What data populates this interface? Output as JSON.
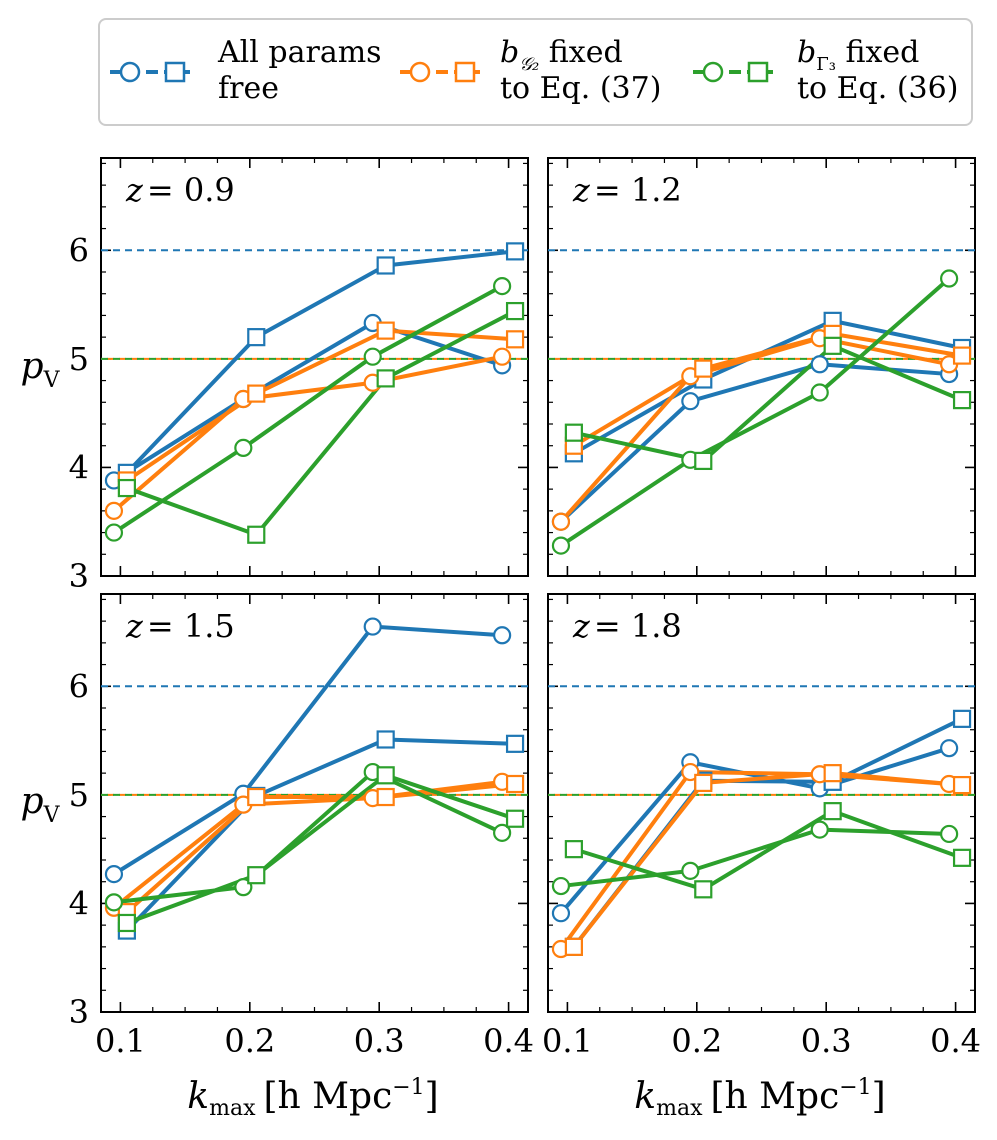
{
  "colors": {
    "free": "#1f77b4",
    "g2": "#ff7f0e",
    "g3": "#2ca02c",
    "axis": "#000000",
    "legend_border": "#cccccc"
  },
  "legend": [
    {
      "key": "free",
      "line1": "All params",
      "line2": "free"
    },
    {
      "key": "g2",
      "sym_main": "b",
      "sym_sub": "𝒢₂",
      "line1_rest": " fixed",
      "line2": "to Eq. (37)"
    },
    {
      "key": "g3",
      "sym_main": "b",
      "sym_sub": "Γ₃",
      "line1_rest": " fixed",
      "line2": "to Eq. (36)"
    }
  ],
  "axes": {
    "ylabel_main": "p",
    "ylabel_sub": "V",
    "xlabel_main": "k",
    "xlabel_sub": "max",
    "xlabel_units": "[h Mpc",
    "xlabel_sup": "−1",
    "xlabel_close": "]",
    "xticks": [
      "0.1",
      "0.2",
      "0.3",
      "0.4"
    ],
    "yticks": [
      "3",
      "4",
      "5",
      "6"
    ]
  },
  "chart_data": [
    {
      "type": "line",
      "title": "z = 0.9",
      "xlabel": "k_max [h Mpc^-1]",
      "ylabel": "p_V",
      "xlim": [
        0.085,
        0.415
      ],
      "ylim": [
        3.0,
        6.85
      ],
      "xticks": [
        0.1,
        0.2,
        0.3,
        0.4
      ],
      "yticks": [
        3,
        4,
        5,
        6
      ],
      "reference_lines": [
        {
          "y": 6.0,
          "series": "free"
        },
        {
          "y": 5.0,
          "series": "g2"
        },
        {
          "y": 5.0,
          "series": "g3"
        }
      ],
      "series": [
        {
          "name": "All params free",
          "key": "free",
          "marker": "circle",
          "x": [
            0.095,
            0.195,
            0.295,
            0.395
          ],
          "y": [
            3.88,
            4.63,
            5.33,
            4.94
          ]
        },
        {
          "name": "All params free",
          "key": "free",
          "marker": "square",
          "x": [
            0.105,
            0.205,
            0.305,
            0.405
          ],
          "y": [
            3.95,
            5.2,
            5.86,
            5.99
          ]
        },
        {
          "name": "b_G2 fixed to Eq. (37)",
          "key": "g2",
          "marker": "circle",
          "x": [
            0.095,
            0.195,
            0.295,
            0.395
          ],
          "y": [
            3.6,
            4.63,
            4.78,
            5.02
          ]
        },
        {
          "name": "b_G2 fixed to Eq. (37)",
          "key": "g2",
          "marker": "square",
          "x": [
            0.105,
            0.205,
            0.305,
            0.405
          ],
          "y": [
            3.88,
            4.68,
            5.26,
            5.18
          ]
        },
        {
          "name": "b_Γ3 fixed to Eq. (36)",
          "key": "g3",
          "marker": "circle",
          "x": [
            0.095,
            0.195,
            0.295,
            0.395
          ],
          "y": [
            3.4,
            4.18,
            5.02,
            5.67
          ]
        },
        {
          "name": "b_Γ3 fixed to Eq. (36)",
          "key": "g3",
          "marker": "square",
          "x": [
            0.105,
            0.205,
            0.305,
            0.405
          ],
          "y": [
            3.81,
            3.38,
            4.82,
            5.44
          ]
        }
      ]
    },
    {
      "type": "line",
      "title": "z = 1.2",
      "xlabel": "k_max [h Mpc^-1]",
      "ylabel": "p_V",
      "xlim": [
        0.085,
        0.415
      ],
      "ylim": [
        3.0,
        6.85
      ],
      "xticks": [
        0.1,
        0.2,
        0.3,
        0.4
      ],
      "yticks": [
        3,
        4,
        5,
        6
      ],
      "reference_lines": [
        {
          "y": 6.0,
          "series": "free"
        },
        {
          "y": 5.0,
          "series": "g2"
        },
        {
          "y": 5.0,
          "series": "g3"
        }
      ],
      "series": [
        {
          "name": "All params free",
          "key": "free",
          "marker": "circle",
          "x": [
            0.095,
            0.195,
            0.295,
            0.395
          ],
          "y": [
            3.5,
            4.61,
            4.95,
            4.86
          ]
        },
        {
          "name": "All params free",
          "key": "free",
          "marker": "square",
          "x": [
            0.105,
            0.205,
            0.305,
            0.405
          ],
          "y": [
            4.13,
            4.81,
            5.35,
            5.1
          ]
        },
        {
          "name": "b_G2 fixed to Eq. (37)",
          "key": "g2",
          "marker": "circle",
          "x": [
            0.095,
            0.195,
            0.295,
            0.395
          ],
          "y": [
            3.5,
            4.84,
            5.19,
            4.95
          ]
        },
        {
          "name": "b_G2 fixed to Eq. (37)",
          "key": "g2",
          "marker": "square",
          "x": [
            0.105,
            0.205,
            0.305,
            0.405
          ],
          "y": [
            4.2,
            4.91,
            5.23,
            5.03
          ]
        },
        {
          "name": "b_Γ3 fixed to Eq. (36)",
          "key": "g3",
          "marker": "circle",
          "x": [
            0.095,
            0.195,
            0.295,
            0.395
          ],
          "y": [
            3.28,
            4.07,
            4.69,
            5.74
          ]
        },
        {
          "name": "b_Γ3 fixed to Eq. (36)",
          "key": "g3",
          "marker": "square",
          "x": [
            0.105,
            0.205,
            0.305,
            0.405
          ],
          "y": [
            4.32,
            4.06,
            5.12,
            4.62
          ]
        }
      ]
    },
    {
      "type": "line",
      "title": "z = 1.5",
      "xlabel": "k_max [h Mpc^-1]",
      "ylabel": "p_V",
      "xlim": [
        0.085,
        0.415
      ],
      "ylim": [
        3.0,
        6.85
      ],
      "xticks": [
        0.1,
        0.2,
        0.3,
        0.4
      ],
      "yticks": [
        3,
        4,
        5,
        6
      ],
      "reference_lines": [
        {
          "y": 6.0,
          "series": "free"
        },
        {
          "y": 5.0,
          "series": "g2"
        },
        {
          "y": 5.0,
          "series": "g3"
        }
      ],
      "series": [
        {
          "name": "All params free",
          "key": "free",
          "marker": "circle",
          "x": [
            0.095,
            0.195,
            0.295,
            0.395
          ],
          "y": [
            4.27,
            5.01,
            6.55,
            6.47
          ]
        },
        {
          "name": "All params free",
          "key": "free",
          "marker": "square",
          "x": [
            0.105,
            0.205,
            0.305,
            0.405
          ],
          "y": [
            3.75,
            4.99,
            5.51,
            5.47
          ]
        },
        {
          "name": "b_G2 fixed to Eq. (37)",
          "key": "g2",
          "marker": "circle",
          "x": [
            0.095,
            0.195,
            0.295,
            0.395
          ],
          "y": [
            3.96,
            4.91,
            4.97,
            5.12
          ]
        },
        {
          "name": "b_G2 fixed to Eq. (37)",
          "key": "g2",
          "marker": "square",
          "x": [
            0.105,
            0.205,
            0.305,
            0.405
          ],
          "y": [
            3.92,
            4.98,
            4.98,
            5.1
          ]
        },
        {
          "name": "b_Γ3 fixed to Eq. (36)",
          "key": "g3",
          "marker": "circle",
          "x": [
            0.095,
            0.195,
            0.295,
            0.395
          ],
          "y": [
            4.01,
            4.15,
            5.21,
            4.65
          ]
        },
        {
          "name": "b_Γ3 fixed to Eq. (36)",
          "key": "g3",
          "marker": "square",
          "x": [
            0.105,
            0.205,
            0.305,
            0.405
          ],
          "y": [
            3.82,
            4.26,
            5.18,
            4.78
          ]
        }
      ]
    },
    {
      "type": "line",
      "title": "z = 1.8",
      "xlabel": "k_max [h Mpc^-1]",
      "ylabel": "p_V",
      "xlim": [
        0.085,
        0.415
      ],
      "ylim": [
        3.0,
        6.85
      ],
      "xticks": [
        0.1,
        0.2,
        0.3,
        0.4
      ],
      "yticks": [
        3,
        4,
        5,
        6
      ],
      "reference_lines": [
        {
          "y": 6.0,
          "series": "free"
        },
        {
          "y": 5.0,
          "series": "g2"
        },
        {
          "y": 5.0,
          "series": "g3"
        }
      ],
      "series": [
        {
          "name": "All params free",
          "key": "free",
          "marker": "circle",
          "x": [
            0.095,
            0.195,
            0.295,
            0.395
          ],
          "y": [
            3.91,
            5.3,
            5.06,
            5.43
          ]
        },
        {
          "name": "All params free",
          "key": "free",
          "marker": "square",
          "x": [
            0.105,
            0.205,
            0.305,
            0.405
          ],
          "y": [
            3.6,
            5.13,
            5.12,
            5.7
          ]
        },
        {
          "name": "b_G2 fixed to Eq. (37)",
          "key": "g2",
          "marker": "circle",
          "x": [
            0.095,
            0.195,
            0.295,
            0.395
          ],
          "y": [
            3.58,
            5.21,
            5.19,
            5.1
          ]
        },
        {
          "name": "b_G2 fixed to Eq. (37)",
          "key": "g2",
          "marker": "square",
          "x": [
            0.105,
            0.205,
            0.305,
            0.405
          ],
          "y": [
            3.6,
            5.11,
            5.2,
            5.09
          ]
        },
        {
          "name": "b_Γ3 fixed to Eq. (36)",
          "key": "g3",
          "marker": "circle",
          "x": [
            0.095,
            0.195,
            0.295,
            0.395
          ],
          "y": [
            4.16,
            4.3,
            4.68,
            4.64
          ]
        },
        {
          "name": "b_Γ3 fixed to Eq. (36)",
          "key": "g3",
          "marker": "square",
          "x": [
            0.105,
            0.205,
            0.305,
            0.405
          ],
          "y": [
            4.5,
            4.13,
            4.85,
            4.42
          ]
        }
      ]
    }
  ]
}
